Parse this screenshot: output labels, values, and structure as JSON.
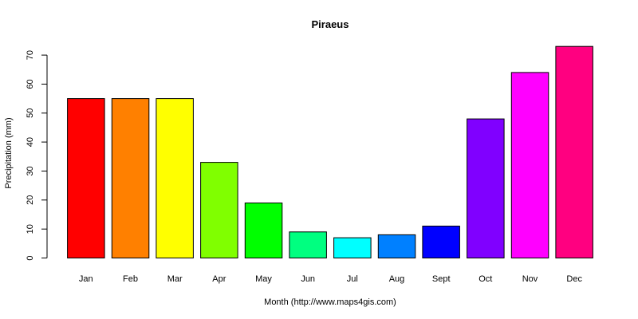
{
  "chart_data": {
    "type": "bar",
    "title": "Piraeus",
    "xlabel": "Month (http://www.maps4gis.com)",
    "ylabel": "Precipitation (mm)",
    "ylim": [
      0,
      70
    ],
    "yticks": [
      0,
      10,
      20,
      30,
      40,
      50,
      60,
      70
    ],
    "categories": [
      "Jan",
      "Feb",
      "Mar",
      "Apr",
      "May",
      "Jun",
      "Jul",
      "Aug",
      "Sept",
      "Oct",
      "Nov",
      "Dec"
    ],
    "values": [
      55,
      55,
      55,
      33,
      19,
      9,
      7,
      8,
      11,
      48,
      64,
      73
    ],
    "colors": [
      "#FF0000",
      "#FF8000",
      "#FFFF00",
      "#80FF00",
      "#00FF00",
      "#00FF80",
      "#00FFFF",
      "#0080FF",
      "#0000FF",
      "#8000FF",
      "#FF00FF",
      "#FF0080"
    ],
    "grid": false,
    "legend": "none"
  }
}
